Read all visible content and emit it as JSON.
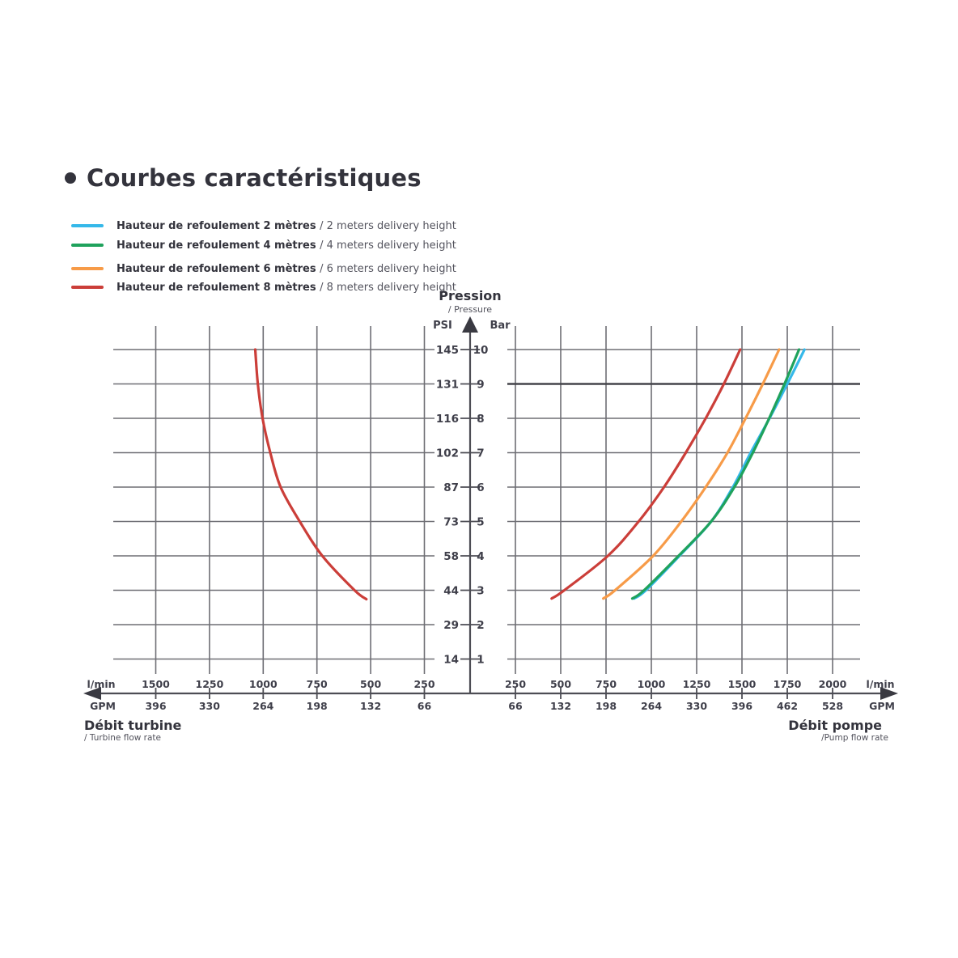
{
  "title": {
    "text": "Courbes caractéristiques"
  },
  "legend": {
    "items": [
      {
        "label_fr": "Hauteur de refoulement 2 mètres ",
        "label_en": "/ 2 meters delivery height",
        "color": "#35b8e9"
      },
      {
        "label_fr": "Hauteur de refoulement 4 mètres ",
        "label_en": "/ 4 meters delivery height",
        "color": "#1fa25c"
      },
      {
        "label_fr": "Hauteur de refoulement 6 mètres ",
        "label_en": "/ 6 meters delivery height",
        "color": "#f79b48"
      },
      {
        "label_fr": "Hauteur de refoulement 8 mètres ",
        "label_en": "/ 8 meters delivery height",
        "color": "#cb3e39"
      }
    ]
  },
  "pressure_axis": {
    "title_fr": "Pression",
    "title_en": "/ Pressure",
    "unit_left": "PSI",
    "unit_right": "Bar",
    "psi_ticks": [
      145,
      131,
      116,
      102,
      87,
      73,
      58,
      44,
      29,
      14
    ],
    "bar_ticks": [
      10,
      9,
      8,
      7,
      6,
      5,
      4,
      3,
      2,
      1
    ]
  },
  "flow_axis": {
    "left": {
      "title_fr": "Débit turbine",
      "title_en": "/ Turbine flow rate",
      "unit_lmin": "l/min",
      "unit_gpm": "GPM"
    },
    "right": {
      "title_fr": "Débit pompe",
      "title_en": "/Pump flow rate",
      "unit_lmin": "l/min",
      "unit_gpm": "GPM"
    }
  },
  "colors": {
    "grid": "#6e6e74",
    "grid_emphasis": "#44444a",
    "axis": "#4d4d54",
    "tick_text": "#3f3f4a",
    "arrow": "#3a3a42"
  },
  "chart_data": [
    {
      "type": "line",
      "side": "left",
      "title": "Débit turbine / Turbine flow rate",
      "x_axis": {
        "unit_top": "l/min",
        "unit_bottom": "GPM",
        "ticks_lmin": [
          1500,
          1250,
          1000,
          750,
          500,
          250
        ],
        "ticks_gpm": [
          396,
          330,
          264,
          198,
          132,
          66
        ],
        "direction": "increasing-leftward"
      },
      "y_axis": {
        "label": "Pression / Pressure",
        "units": [
          "PSI",
          "Bar"
        ],
        "range_bar": [
          1,
          10
        ]
      },
      "series": [
        {
          "name": "Hauteur de refoulement 8 mètres / 8 meters delivery height",
          "color": "#cb3e39",
          "points_lmin_bar": [
            [
              520,
              2.74
            ],
            [
              575,
              3
            ],
            [
              725,
              4
            ],
            [
              830,
              5
            ],
            [
              919,
              6
            ],
            [
              967,
              7
            ],
            [
              1003,
              8
            ],
            [
              1025,
              9
            ],
            [
              1037,
              10
            ]
          ]
        }
      ]
    },
    {
      "type": "line",
      "side": "right",
      "title": "Débit pompe / Pump flow rate",
      "emphasized_bar_line": 9,
      "x_axis": {
        "unit_top": "l/min",
        "unit_bottom": "GPM",
        "ticks_lmin": [
          250,
          500,
          750,
          1000,
          1250,
          1500,
          1750,
          2000
        ],
        "ticks_gpm": [
          66,
          132,
          198,
          264,
          330,
          396,
          462,
          528
        ],
        "direction": "increasing-rightward"
      },
      "y_axis": {
        "label": "Pression / Pressure",
        "units": [
          "PSI",
          "Bar"
        ],
        "range_bar": [
          1,
          10
        ]
      },
      "series": [
        {
          "name": "Hauteur de refoulement 2 mètres / 2 meters delivery height",
          "color": "#35b8e9",
          "points_lmin_bar": [
            [
              905,
              2.76
            ],
            [
              970,
              3
            ],
            [
              1155,
              4
            ],
            [
              1330,
              5
            ],
            [
              1450,
              6
            ],
            [
              1548,
              7
            ],
            [
              1652,
              8
            ],
            [
              1750,
              9
            ],
            [
              1845,
              10
            ]
          ]
        },
        {
          "name": "Hauteur de refoulement 4 mètres / 4 meters delivery height",
          "color": "#1fa25c",
          "points_lmin_bar": [
            [
              895,
              2.76
            ],
            [
              960,
              3
            ],
            [
              1150,
              4
            ],
            [
              1330,
              5
            ],
            [
              1458,
              6
            ],
            [
              1560,
              7
            ],
            [
              1650,
              8
            ],
            [
              1735,
              9
            ],
            [
              1815,
              10
            ]
          ]
        },
        {
          "name": "Hauteur de refoulement 6 mètres / 6 meters delivery height",
          "color": "#f79b48",
          "points_lmin_bar": [
            [
              735,
              2.76
            ],
            [
              800,
              3
            ],
            [
              1010,
              4
            ],
            [
              1165,
              5
            ],
            [
              1300,
              6
            ],
            [
              1420,
              7
            ],
            [
              1520,
              8
            ],
            [
              1615,
              9
            ],
            [
              1705,
              10
            ]
          ]
        },
        {
          "name": "Hauteur de refoulement 8 mètres / 8 meters delivery height",
          "color": "#cb3e39",
          "points_lmin_bar": [
            [
              450,
              2.76
            ],
            [
              520,
              3
            ],
            [
              760,
              4
            ],
            [
              930,
              5
            ],
            [
              1070,
              6
            ],
            [
              1190,
              7
            ],
            [
              1300,
              8
            ],
            [
              1400,
              9
            ],
            [
              1490,
              10
            ]
          ]
        }
      ]
    }
  ]
}
